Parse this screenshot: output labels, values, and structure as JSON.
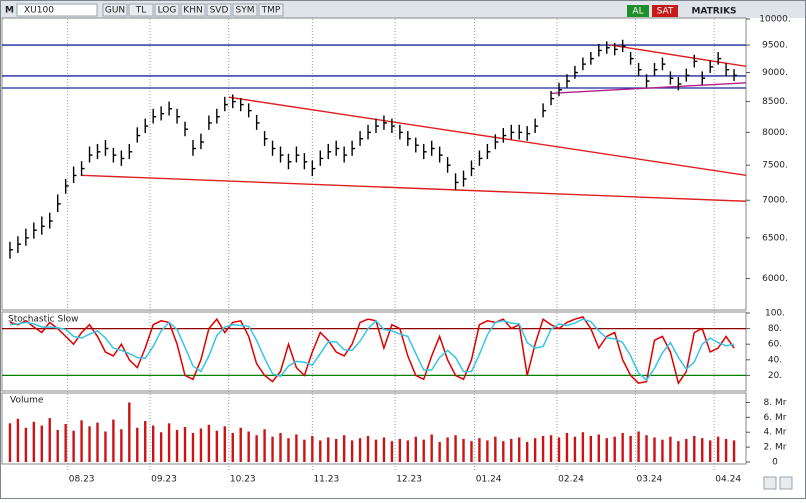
{
  "toolbar": {
    "mode": "M",
    "ticker": "XU100",
    "buttons": [
      "GUN",
      "TL",
      "LOG",
      "KHN",
      "SVD",
      "SYM",
      "TMP"
    ],
    "buy": "AL",
    "sell": "SAT",
    "brand": "MATRIKS"
  },
  "chart_data": [
    {
      "type": "ohlc",
      "color": "#000000",
      "log_scale": true,
      "ylim": [
        5640,
        10000
      ],
      "yticks": [
        {
          "value": 6000,
          "label": "6000."
        },
        {
          "value": 6500,
          "label": "6500."
        },
        {
          "value": 7000,
          "label": "7000."
        },
        {
          "value": 7500,
          "label": "7500."
        },
        {
          "value": 8000,
          "label": "8000."
        },
        {
          "value": 8500,
          "label": "8500."
        },
        {
          "value": 9000,
          "label": "9000."
        },
        {
          "value": 9500,
          "label": "9500."
        },
        {
          "value": 10000,
          "label": "10000."
        }
      ],
      "close": [
        6350,
        6420,
        6500,
        6600,
        6650,
        6720,
        6950,
        7200,
        7350,
        7450,
        7650,
        7700,
        7750,
        7650,
        7600,
        7700,
        7950,
        8100,
        8250,
        8300,
        8380,
        8250,
        8050,
        7750,
        7850,
        8150,
        8250,
        8450,
        8500,
        8450,
        8350,
        8150,
        7900,
        7750,
        7650,
        7550,
        7650,
        7550,
        7450,
        7600,
        7700,
        7750,
        7650,
        7750,
        7900,
        8000,
        8100,
        8150,
        8100,
        8000,
        7900,
        7800,
        7700,
        7750,
        7650,
        7500,
        7250,
        7300,
        7450,
        7600,
        7700,
        7850,
        7950,
        8000,
        8000,
        7980,
        8100,
        8350,
        8550,
        8700,
        8850,
        9000,
        9150,
        9250,
        9400,
        9450,
        9420,
        9480,
        9250,
        9050,
        8850,
        9050,
        9150,
        8900,
        8800,
        8950,
        9200,
        8900,
        9100,
        9250,
        9050,
        8950
      ],
      "high": [
        6450,
        6520,
        6620,
        6700,
        6780,
        6830,
        7080,
        7300,
        7480,
        7560,
        7780,
        7820,
        7880,
        7760,
        7720,
        7820,
        8080,
        8220,
        8380,
        8420,
        8500,
        8380,
        8170,
        7880,
        7980,
        8270,
        8380,
        8580,
        8620,
        8560,
        8470,
        8280,
        8020,
        7870,
        7780,
        7670,
        7780,
        7680,
        7570,
        7720,
        7820,
        7870,
        7780,
        7870,
        8020,
        8120,
        8220,
        8270,
        8220,
        8120,
        8020,
        7920,
        7820,
        7870,
        7780,
        7620,
        7380,
        7420,
        7570,
        7720,
        7820,
        7970,
        8070,
        8120,
        8120,
        8100,
        8220,
        8470,
        8680,
        8820,
        8970,
        9120,
        9270,
        9370,
        9520,
        9570,
        9540,
        9600,
        9370,
        9170,
        8970,
        9170,
        9270,
        9020,
        8920,
        9070,
        9320,
        9020,
        9220,
        9370,
        9170,
        9060
      ],
      "low": [
        6240,
        6310,
        6400,
        6490,
        6540,
        6620,
        6840,
        7090,
        7240,
        7340,
        7540,
        7590,
        7640,
        7540,
        7490,
        7590,
        7840,
        7990,
        8140,
        8190,
        8270,
        8140,
        7940,
        7640,
        7740,
        8040,
        8140,
        8340,
        8390,
        8340,
        8240,
        8040,
        7790,
        7640,
        7540,
        7440,
        7540,
        7440,
        7340,
        7490,
        7590,
        7640,
        7540,
        7640,
        7790,
        7890,
        7990,
        8040,
        7990,
        7890,
        7790,
        7690,
        7590,
        7640,
        7540,
        7390,
        7140,
        7190,
        7340,
        7490,
        7590,
        7740,
        7840,
        7890,
        7890,
        7870,
        7990,
        8240,
        8440,
        8590,
        8740,
        8890,
        9040,
        9140,
        9290,
        9340,
        9310,
        9370,
        9140,
        8940,
        8740,
        8940,
        9040,
        8790,
        8690,
        8840,
        9090,
        8790,
        8990,
        9140,
        8940,
        8850
      ],
      "hlines": [
        {
          "value": 9500,
          "color": "#1c2a9c"
        },
        {
          "value": 8940,
          "color": "#1c2a9c"
        },
        {
          "value": 8730,
          "color": "#1c2a9c"
        }
      ],
      "trendlines": [
        {
          "x": [
            27.5,
            92.5
          ],
          "y": [
            8574,
            7352
          ],
          "color": "#e02020"
        },
        {
          "x": [
            9,
            92.5
          ],
          "y": [
            7352,
            6986
          ],
          "color": "#e02020"
        },
        {
          "x": [
            75.5,
            92.5
          ],
          "y": [
            9500,
            9110
          ],
          "color": "#e02020"
        },
        {
          "x": [
            68,
            92.5
          ],
          "y": [
            8640,
            8820
          ],
          "color": "#b0208a"
        }
      ]
    },
    {
      "type": "line",
      "title": "Stochastic Slow",
      "ylim": [
        0,
        100
      ],
      "yticks": [
        {
          "value": 20,
          "label": "20."
        },
        {
          "value": 40,
          "label": "40."
        },
        {
          "value": 60,
          "label": "60."
        },
        {
          "value": 80,
          "label": "80."
        },
        {
          "value": 100,
          "label": "100."
        }
      ],
      "hlines": [
        {
          "value": 80,
          "color": "#8b0000"
        },
        {
          "value": 20,
          "color": "#008000"
        }
      ],
      "series": [
        {
          "color": "#e00000",
          "values": [
            88,
            85,
            90,
            82,
            75,
            88,
            80,
            70,
            60,
            75,
            85,
            70,
            50,
            45,
            60,
            40,
            30,
            55,
            85,
            90,
            88,
            60,
            20,
            15,
            40,
            80,
            92,
            75,
            88,
            90,
            70,
            35,
            20,
            12,
            25,
            60,
            30,
            20,
            50,
            75,
            65,
            50,
            45,
            60,
            88,
            92,
            90,
            55,
            85,
            80,
            45,
            20,
            15,
            45,
            70,
            40,
            20,
            15,
            40,
            85,
            90,
            88,
            92,
            80,
            85,
            20,
            60,
            92,
            85,
            80,
            88,
            92,
            95,
            80,
            55,
            70,
            75,
            40,
            20,
            10,
            12,
            65,
            70,
            50,
            10,
            25,
            75,
            80,
            50,
            55,
            70,
            55
          ]
        },
        {
          "color": "#33c6e6",
          "values": [
            85,
            86,
            88,
            86,
            82,
            82,
            81,
            79,
            70,
            68,
            73,
            77,
            68,
            55,
            52,
            48,
            43,
            42,
            57,
            77,
            88,
            79,
            56,
            32,
            25,
            45,
            71,
            82,
            85,
            84,
            83,
            65,
            42,
            22,
            19,
            32,
            38,
            37,
            33,
            48,
            63,
            63,
            53,
            52,
            64,
            80,
            90,
            79,
            77,
            73,
            70,
            48,
            27,
            27,
            43,
            52,
            43,
            25,
            25,
            47,
            72,
            88,
            90,
            87,
            86,
            62,
            55,
            57,
            79,
            86,
            84,
            87,
            92,
            89,
            77,
            68,
            67,
            62,
            45,
            23,
            14,
            29,
            49,
            62,
            43,
            28,
            37,
            60,
            68,
            62,
            58,
            60
          ]
        }
      ]
    },
    {
      "type": "bar",
      "title": "Volume",
      "color": "#cc1414",
      "ylim": [
        0,
        8.6
      ],
      "yticks": [
        {
          "value": 0,
          "label": "0"
        },
        {
          "value": 2,
          "label": "2. Mr"
        },
        {
          "value": 4,
          "label": "4. Mr"
        },
        {
          "value": 6,
          "label": "6. Mr"
        },
        {
          "value": 8,
          "label": "8. Mr"
        }
      ],
      "xlim": [
        -1,
        92.5
      ],
      "xticks": [
        {
          "value": 7.25,
          "label": "08.23"
        },
        {
          "value": 17.6,
          "label": "09.23"
        },
        {
          "value": 27.5,
          "label": "10.23"
        },
        {
          "value": 38,
          "label": "11.23"
        },
        {
          "value": 48.4,
          "label": "12.23"
        },
        {
          "value": 58.4,
          "label": "01.24"
        },
        {
          "value": 68.75,
          "label": "02.24"
        },
        {
          "value": 78.6,
          "label": "03.24"
        },
        {
          "value": 88.5,
          "label": "04.24"
        }
      ],
      "values": [
        5.2,
        5.8,
        4.6,
        5.4,
        4.9,
        5.9,
        4.3,
        5.1,
        4.2,
        5.6,
        4.8,
        5.3,
        4.1,
        5.7,
        4.4,
        8.0,
        4.6,
        5.5,
        4.9,
        4.0,
        5.2,
        4.3,
        4.7,
        3.9,
        4.5,
        5.0,
        4.2,
        4.8,
        3.9,
        4.6,
        4.1,
        3.6,
        4.4,
        3.4,
        3.9,
        3.2,
        3.7,
        3.0,
        3.5,
        2.9,
        3.3,
        3.1,
        3.6,
        2.9,
        3.2,
        3.5,
        3.0,
        3.3,
        2.8,
        3.1,
        2.9,
        3.4,
        3.0,
        3.7,
        2.7,
        3.3,
        3.6,
        3.1,
        2.8,
        3.2,
        2.9,
        3.4,
        2.8,
        3.1,
        3.3,
        2.7,
        3.2,
        3.5,
        3.6,
        3.3,
        3.9,
        3.4,
        4.0,
        3.5,
        3.7,
        3.2,
        3.4,
        3.9,
        3.5,
        4.1,
        3.6,
        3.3,
        3.0,
        3.4,
        2.8,
        3.1,
        3.5,
        3.2,
        2.9,
        3.4,
        3.1,
        2.9
      ]
    }
  ]
}
